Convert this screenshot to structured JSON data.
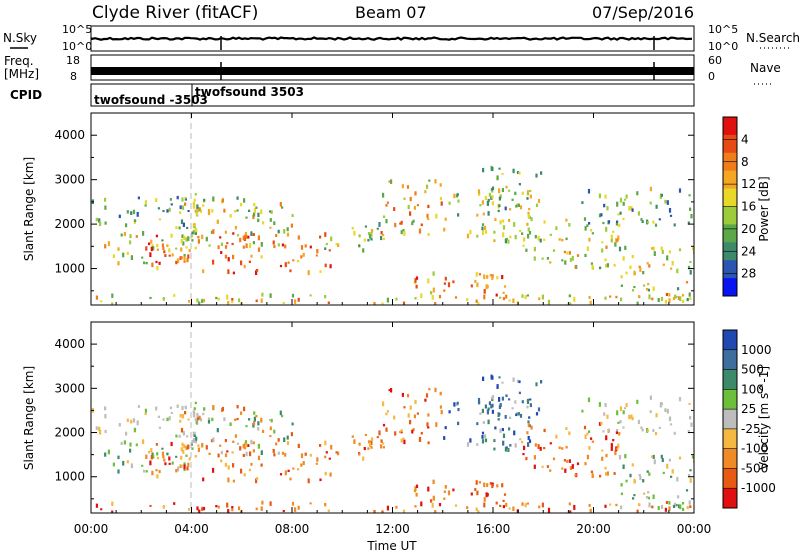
{
  "header": {
    "station": "Clyde River (fitACF)",
    "beam": "Beam 07",
    "date": "07/Sep/2016"
  },
  "status_panels": {
    "nsky_label": "N.Sky",
    "nsky_ticks": [
      "10^5",
      "10^0"
    ],
    "nsearch_label": "N.Search",
    "nsearch_ticks": [
      "10^5",
      "10^0"
    ],
    "freq_label": "Freq.",
    "freq_unit": "[MHz]",
    "freq_ticks": [
      "18",
      "8"
    ],
    "nave_label": "Nave",
    "nave_ticks": [
      "60",
      "0"
    ],
    "cpid_label": "CPID",
    "cpid_entries": [
      {
        "label": "twofsound -3503",
        "start_hour": 0.0
      },
      {
        "label": "twofsound 3503",
        "start_hour": 5.1
      }
    ]
  },
  "x_axis": {
    "label": "Time UT",
    "ticks": [
      "00:00",
      "04:00",
      "08:00",
      "12:00",
      "16:00",
      "20:00",
      "00:00"
    ],
    "range_hours": [
      0,
      24
    ]
  },
  "chart_data": [
    {
      "type": "heatmap",
      "title": "Power",
      "ylabel": "Slant Range [km]",
      "yticks": [
        1000,
        2000,
        3000,
        4000
      ],
      "ylim": [
        180,
        4500
      ],
      "xlim_hours": [
        0,
        24
      ],
      "colorbar": {
        "label": "Power [dB]",
        "ticks": [
          "4",
          "8",
          "12",
          "16",
          "20",
          "24",
          "28"
        ],
        "colors": [
          "#0a14f0",
          "#2a55b0",
          "#3c8a6a",
          "#5aa84a",
          "#9ccc3a",
          "#e8d828",
          "#f5a623",
          "#f07d1a",
          "#e84a14",
          "#e01010"
        ]
      }
    },
    {
      "type": "heatmap",
      "title": "Velocity",
      "ylabel": "Slant Range [km]",
      "yticks": [
        1000,
        2000,
        3000,
        4000
      ],
      "ylim": [
        180,
        4500
      ],
      "xlim_hours": [
        0,
        24
      ],
      "colorbar": {
        "label": "Velocity [m s^-1]",
        "ticks": [
          "1000",
          "500",
          "100",
          "25",
          "-25",
          "-100",
          "-500",
          "-1000"
        ],
        "colors": [
          "#2048b0",
          "#3d6e9e",
          "#3c8a6a",
          "#6cbf3a",
          "#bdbdbd",
          "#f5b942",
          "#f08a24",
          "#e85a14",
          "#e01010"
        ]
      }
    }
  ]
}
